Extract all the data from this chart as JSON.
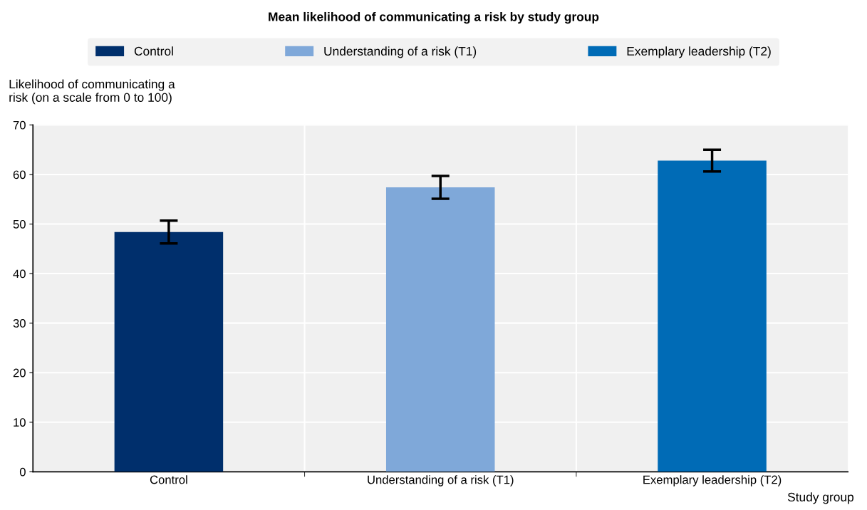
{
  "chart_data": {
    "type": "bar",
    "title": "Mean likelihood of communicating a risk by study group",
    "categories": [
      "Control",
      "Understanding of a risk (T1)",
      "Exemplary leadership (T2)"
    ],
    "series": [
      {
        "name": "Control",
        "color": "#002f6c",
        "values": [
          48.4,
          null,
          null
        ],
        "errors": [
          2.3,
          null,
          null
        ]
      },
      {
        "name": "Understanding of a risk (T1)",
        "color": "#7fa8d9",
        "values": [
          null,
          57.4,
          null
        ],
        "errors": [
          null,
          2.3,
          null
        ]
      },
      {
        "name": "Exemplary leadership (T2)",
        "color": "#006bb6",
        "values": [
          null,
          null,
          62.8
        ],
        "errors": [
          null,
          null,
          2.2
        ]
      }
    ],
    "stacked": true,
    "ylabel": "Likelihood of communicating a\nrisk (on a scale from 0 to 100)",
    "xlabel": "Study group",
    "ylim": [
      0,
      70
    ],
    "yticks": [
      0,
      10,
      20,
      30,
      40,
      50,
      60,
      70
    ],
    "grid": "y",
    "legend": "top"
  }
}
